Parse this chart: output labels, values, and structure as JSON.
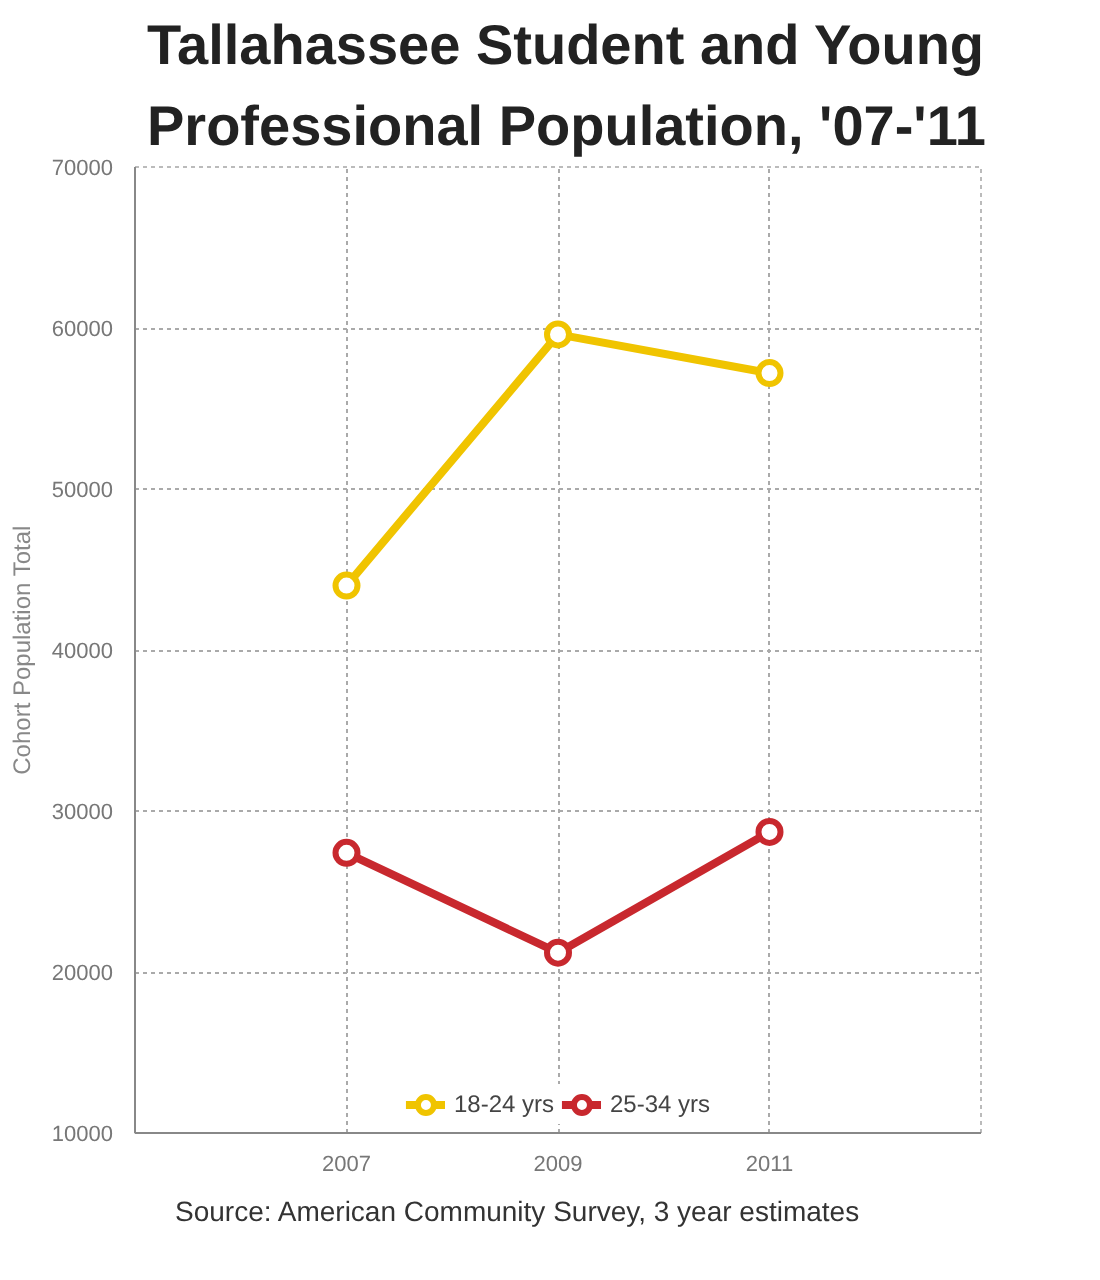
{
  "chart_data": {
    "type": "line",
    "title": "Tallahassee Student and Young Professional Population, '07-'11",
    "ylabel": "Cohort Population Total",
    "x": [
      2007,
      2009,
      2011
    ],
    "xlim": [
      2005,
      2013
    ],
    "xticks": [
      2007,
      2009,
      2011
    ],
    "ylim": [
      10000,
      70000
    ],
    "yticks": [
      10000,
      20000,
      30000,
      40000,
      50000,
      60000,
      70000
    ],
    "series": [
      {
        "name": "18-24 yrs",
        "color": "#f0c400",
        "values": [
          44000,
          59600,
          57200
        ]
      },
      {
        "name": "25-34 yrs",
        "color": "#c8282e",
        "values": [
          27400,
          21200,
          28700
        ]
      }
    ],
    "grid": true,
    "legend": "bottom",
    "marker": "circle",
    "line_style": "solid",
    "annotations": [
      "Source: American Community Survey, 3 year estimates"
    ]
  }
}
